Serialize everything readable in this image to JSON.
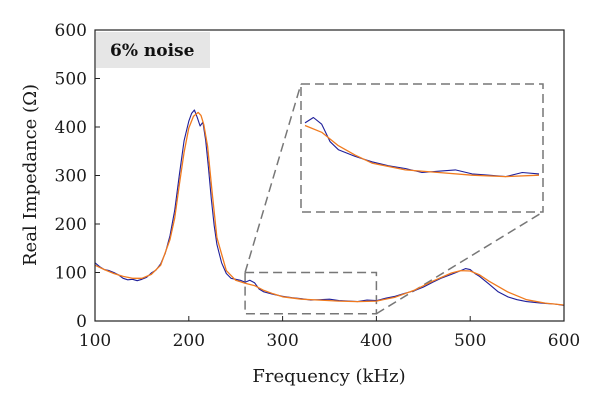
{
  "chart_data": {
    "type": "line",
    "title": "",
    "xlabel": "Frequency (kHz)",
    "ylabel": "Real Impedance (Ω)",
    "xlim": [
      100,
      600
    ],
    "ylim": [
      0,
      600
    ],
    "xticks": [
      "100",
      "200",
      "300",
      "400",
      "500",
      "600"
    ],
    "yticks": [
      "0",
      "100",
      "200",
      "300",
      "400",
      "500",
      "600"
    ],
    "annotation": "6% noise",
    "grid": false,
    "series": [
      {
        "color": "#1f1f9a",
        "x": [
          100,
          105,
          110,
          115,
          120,
          125,
          130,
          135,
          140,
          145,
          150,
          155,
          160,
          165,
          170,
          175,
          180,
          185,
          190,
          195,
          200,
          203,
          206,
          209,
          212,
          215,
          218,
          221,
          224,
          227,
          230,
          235,
          240,
          245,
          250,
          255,
          260,
          265,
          270,
          275,
          280,
          290,
          300,
          310,
          320,
          330,
          340,
          350,
          360,
          370,
          380,
          390,
          400,
          410,
          420,
          430,
          440,
          450,
          460,
          470,
          480,
          490,
          495,
          500,
          505,
          510,
          520,
          530,
          540,
          550,
          560,
          570,
          580,
          590,
          600
        ],
        "y": [
          120,
          112,
          106,
          104,
          100,
          95,
          88,
          85,
          86,
          83,
          86,
          90,
          99,
          105,
          118,
          140,
          176,
          228,
          302,
          372,
          412,
          428,
          435,
          420,
          402,
          410,
          372,
          315,
          252,
          198,
          158,
          120,
          98,
          88,
          86,
          84,
          80,
          84,
          79,
          66,
          60,
          55,
          51,
          48,
          46,
          43,
          44,
          45,
          42,
          41,
          40,
          43,
          42,
          47,
          51,
          57,
          62,
          70,
          80,
          89,
          96,
          104,
          108,
          106,
          98,
          92,
          76,
          60,
          50,
          44,
          40,
          38,
          36,
          35,
          32
        ]
      },
      {
        "color": "#f07a1e",
        "x": [
          100,
          110,
          120,
          130,
          140,
          150,
          160,
          170,
          180,
          185,
          190,
          195,
          200,
          205,
          210,
          213,
          216,
          220,
          225,
          230,
          240,
          250,
          260,
          270,
          280,
          290,
          300,
          320,
          340,
          360,
          380,
          400,
          420,
          440,
          460,
          480,
          490,
          500,
          510,
          520,
          540,
          560,
          580,
          600
        ],
        "y": [
          115,
          106,
          98,
          92,
          88,
          88,
          96,
          115,
          168,
          212,
          282,
          348,
          398,
          422,
          430,
          424,
          405,
          360,
          262,
          172,
          104,
          84,
          78,
          73,
          63,
          56,
          50,
          45,
          43,
          41,
          40,
          41,
          49,
          63,
          82,
          99,
          104,
          103,
          95,
          82,
          60,
          44,
          37,
          33
        ]
      }
    ]
  }
}
